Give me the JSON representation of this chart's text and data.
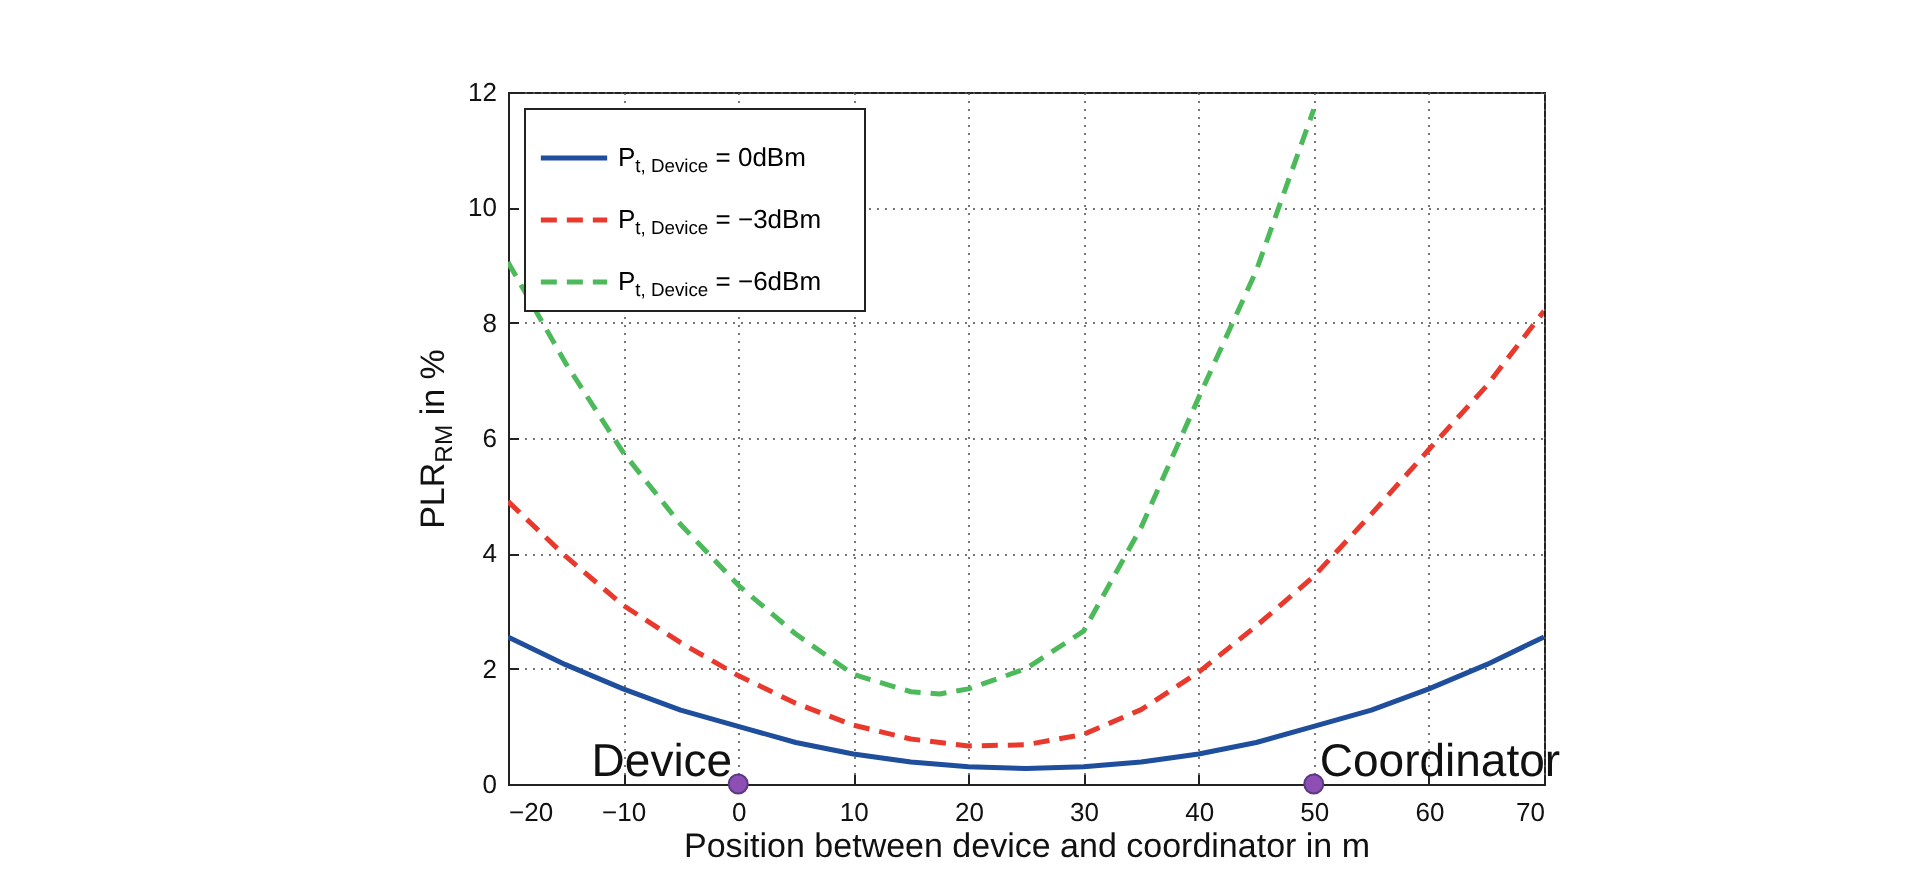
{
  "chart_data": {
    "type": "line",
    "xlabel": "Position between device and coordinator in m",
    "ylabel": "PLR$_{RM}$ in %",
    "x": [
      -20,
      -15,
      -10,
      -5,
      0,
      5,
      10,
      15,
      20,
      25,
      30,
      35,
      40,
      45,
      50,
      55,
      60,
      65,
      70
    ],
    "xlim": [
      -20,
      70
    ],
    "xticks": [
      -20,
      -10,
      0,
      10,
      20,
      30,
      40,
      50,
      60,
      70
    ],
    "ylim": [
      0,
      12
    ],
    "yticks": [
      0,
      2,
      4,
      6,
      8,
      10,
      12
    ],
    "grid": true,
    "legend": "top left",
    "series": [
      {
        "name": "P$_{t, Device}$ =  0dBm",
        "color": "#1f4e9c",
        "line_style": "solid",
        "values": [
          2.55,
          2.07,
          1.65,
          1.28,
          1.0,
          0.72,
          0.52,
          0.38,
          0.3,
          0.27,
          0.3,
          0.38,
          0.52,
          0.72,
          1.0,
          1.28,
          1.65,
          2.07,
          2.55
        ]
      },
      {
        "name": "P$_{t, Device}$ = −3dBm",
        "color": "#e8392c",
        "line_style": "dashed",
        "values": [
          4.9,
          3.95,
          3.1,
          2.45,
          1.88,
          1.4,
          1.02,
          0.78,
          0.66,
          0.68,
          0.86,
          1.29,
          1.94,
          2.74,
          3.6,
          4.68,
          5.8,
          6.9,
          8.2
        ]
      },
      {
        "name": "P$_{t, Device}$ = −6dBm",
        "color": "#4cba5a",
        "line_style": "dashed",
        "x": [
          -20,
          -15,
          -10,
          -5,
          0,
          5,
          10,
          15,
          17.5,
          20,
          25,
          30,
          35,
          40,
          45,
          50
        ],
        "values": [
          9.05,
          7.3,
          5.75,
          4.5,
          3.45,
          2.6,
          1.9,
          1.6,
          1.56,
          1.65,
          2.0,
          2.65,
          4.45,
          6.7,
          8.9,
          11.7
        ]
      },
      {
        "type": "scatter",
        "color": "#8e4fb5",
        "marker": "circle",
        "x": [
          0,
          50
        ],
        "values": [
          0,
          0
        ]
      }
    ],
    "annotations": [
      {
        "text": "Device",
        "x": 0,
        "y": 0
      },
      {
        "text": "Coordinator",
        "x": 50,
        "y": 0
      }
    ]
  }
}
